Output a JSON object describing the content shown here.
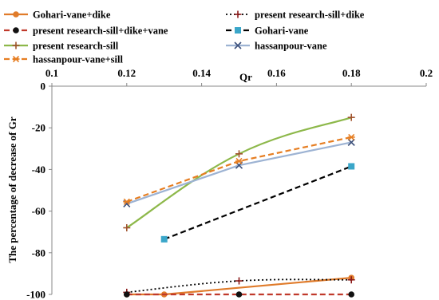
{
  "chart_data": {
    "type": "line",
    "title": "",
    "xlabel": "Qr",
    "ylabel": "The percentage of decrease of Gr",
    "xlim": [
      0.1,
      0.2
    ],
    "ylim": [
      -100,
      0
    ],
    "x_ticks": [
      "0.1",
      "0.12",
      "0.14",
      "0.16",
      "0.18",
      "0.2"
    ],
    "y_ticks": [
      "0",
      "-20",
      "-40",
      "-60",
      "-80",
      "-100"
    ],
    "grid": false,
    "x_axis_position": "top",
    "legend_position": "top",
    "series": [
      {
        "name": "Gohari-vane+dike",
        "color": "#e07b2a",
        "line_style": "solid",
        "marker": "circle",
        "smooth": false,
        "x": [
          0.12,
          0.13,
          0.18
        ],
        "y": [
          -100,
          -100,
          -92
        ]
      },
      {
        "name": "present research-sill+dike",
        "color": "#000000",
        "line_style": "dotted",
        "marker": "plus",
        "smooth": true,
        "x": [
          0.12,
          0.15,
          0.18
        ],
        "y": [
          -99,
          -93.5,
          -93
        ]
      },
      {
        "name": "present research-sill+dike+vane",
        "color": "#c0392b",
        "line_style": "dashed",
        "marker": "circle-dark",
        "smooth": false,
        "x": [
          0.12,
          0.15,
          0.18
        ],
        "y": [
          -100,
          -100,
          -100
        ]
      },
      {
        "name": "Gohari-vane",
        "color": "#000000",
        "line_style": "dashed",
        "marker": "square",
        "smooth": false,
        "x": [
          0.13,
          0.18
        ],
        "y": [
          -73.5,
          -38.5
        ]
      },
      {
        "name": "present research-sill",
        "color": "#8db84a",
        "line_style": "solid",
        "marker": "plus",
        "smooth": true,
        "x": [
          0.12,
          0.15,
          0.18
        ],
        "y": [
          -68,
          -32.5,
          -15
        ]
      },
      {
        "name": "hassanpour-vane",
        "color": "#9db3d3",
        "line_style": "solid",
        "marker": "x",
        "smooth": false,
        "x": [
          0.12,
          0.15,
          0.18
        ],
        "y": [
          -56.5,
          -38,
          -27
        ]
      },
      {
        "name": "hassanpour-vane+sill",
        "color": "#e67e22",
        "line_style": "dashed",
        "marker": "asterisk",
        "smooth": false,
        "x": [
          0.12,
          0.15,
          0.18
        ],
        "y": [
          -55.5,
          -36,
          -24.5
        ]
      }
    ]
  }
}
